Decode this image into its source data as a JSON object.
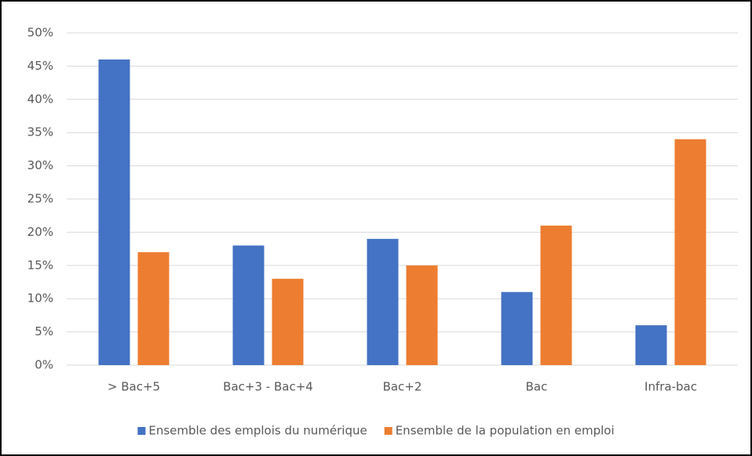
{
  "chart_data": {
    "type": "bar",
    "categories": [
      "> Bac+5",
      "Bac+3 - Bac+4",
      "Bac+2",
      "Bac",
      "Infra-bac"
    ],
    "series": [
      {
        "name": "Ensemble des emplois du numérique",
        "color": "#4472c4",
        "values": [
          46,
          18,
          19,
          11,
          6
        ]
      },
      {
        "name": "Ensemble de la population en emploi",
        "color": "#ed7d31",
        "values": [
          17,
          13,
          15,
          21,
          34
        ]
      }
    ],
    "ylim": [
      0,
      50
    ],
    "yticks": [
      {
        "value": 0,
        "label": "0%"
      },
      {
        "value": 5,
        "label": "5%"
      },
      {
        "value": 10,
        "label": "10%"
      },
      {
        "value": 15,
        "label": "15%"
      },
      {
        "value": 20,
        "label": "20%"
      },
      {
        "value": 25,
        "label": "25%"
      },
      {
        "value": 30,
        "label": "30%"
      },
      {
        "value": 35,
        "label": "35%"
      },
      {
        "value": 40,
        "label": "40%"
      },
      {
        "value": 45,
        "label": "45%"
      },
      {
        "value": 50,
        "label": "50%"
      }
    ],
    "grid": true,
    "legend": "bottom"
  }
}
